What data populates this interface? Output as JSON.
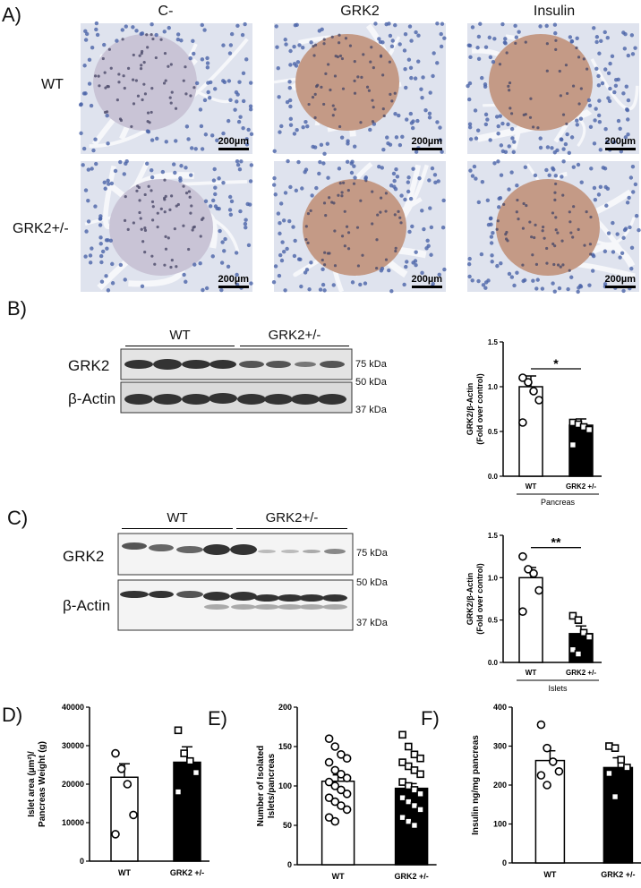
{
  "panels": {
    "A": "A)",
    "B": "B)",
    "C": "C)",
    "D": "D)",
    "E": "E)",
    "F": "F)"
  },
  "panel_a": {
    "columns": [
      "C-",
      "GRK2",
      "Insulin"
    ],
    "rows": [
      "WT",
      "GRK2+/-"
    ],
    "scale_label": "200µm"
  },
  "blot_b": {
    "groups": [
      "WT",
      "GRK2+/-"
    ],
    "bands": [
      "GRK2",
      "β-Actin"
    ],
    "markers": [
      "75 kDa",
      "50 kDa",
      "37 kDa"
    ]
  },
  "blot_c": {
    "groups": [
      "WT",
      "GRK2+/-"
    ],
    "bands": [
      "GRK2",
      "β-Actin"
    ],
    "markers": [
      "75 kDa",
      "50 kDa",
      "37 kDa"
    ]
  },
  "chart_data": [
    {
      "id": "B",
      "type": "bar",
      "categories": [
        "WT",
        "GRK2 +/-"
      ],
      "values": [
        1.0,
        0.57
      ],
      "errors": [
        0.12,
        0.07
      ],
      "points": [
        [
          1.1,
          1.05,
          0.95,
          0.85,
          0.6
        ],
        [
          0.6,
          0.58,
          0.55,
          0.52,
          0.35
        ]
      ],
      "ylabel": "GRK2/β-Actin\n(Fold over control)",
      "ylim": [
        0,
        1.5
      ],
      "yticks": [
        0.0,
        0.5,
        1.0,
        1.5
      ],
      "group_label": "Pancreas",
      "significance": "*"
    },
    {
      "id": "C",
      "type": "bar",
      "categories": [
        "WT",
        "GRK2 +/-"
      ],
      "values": [
        1.0,
        0.34
      ],
      "errors": [
        0.12,
        0.09
      ],
      "points": [
        [
          1.25,
          1.1,
          1.05,
          0.85,
          0.6
        ],
        [
          0.55,
          0.5,
          0.35,
          0.3,
          0.15,
          0.1
        ]
      ],
      "ylabel": "GRK2/β-Actin\n(Fold over control)",
      "ylim": [
        0,
        1.5
      ],
      "yticks": [
        0.0,
        0.5,
        1.0,
        1.5
      ],
      "group_label": "Islets",
      "significance": "**"
    },
    {
      "id": "D",
      "type": "bar",
      "categories": [
        "WT",
        "GRK2 +/-"
      ],
      "values": [
        21800,
        25700
      ],
      "errors": [
        3500,
        4000
      ],
      "points": [
        [
          28000,
          24000,
          20000,
          12000,
          7000
        ],
        [
          34000,
          28000,
          26000,
          23000,
          18000
        ]
      ],
      "ylabel": "Islet area (µm²)/\nPancreas Weight (g)",
      "ylim": [
        0,
        40000
      ],
      "yticks": [
        0,
        10000,
        20000,
        30000,
        40000
      ]
    },
    {
      "id": "E",
      "type": "bar",
      "categories": [
        "WT",
        "GRK2 +/-"
      ],
      "values": [
        106,
        97
      ],
      "errors": [
        8,
        6
      ],
      "points": [
        [
          160,
          150,
          140,
          135,
          130,
          120,
          115,
          110,
          105,
          100,
          95,
          90,
          85,
          80,
          75,
          70,
          60,
          55
        ],
        [
          165,
          150,
          140,
          135,
          130,
          125,
          120,
          115,
          105,
          100,
          95,
          90,
          85,
          80,
          75,
          70,
          60,
          55,
          50
        ]
      ],
      "ylabel": "Number of Isolated\nIslets/pancreas",
      "ylim": [
        0,
        200
      ],
      "yticks": [
        0,
        50,
        100,
        150,
        200
      ]
    },
    {
      "id": "F",
      "type": "bar",
      "categories": [
        "WT",
        "GRK2 +/-"
      ],
      "values": [
        263,
        245
      ],
      "errors": [
        25,
        25
      ],
      "points": [
        [
          355,
          295,
          260,
          235,
          225,
          200
        ],
        [
          300,
          295,
          265,
          245,
          230,
          170
        ]
      ],
      "ylabel": "Insulin ng/mg pancreas",
      "ylim": [
        0,
        400
      ],
      "yticks": [
        0,
        100,
        200,
        300,
        400
      ]
    }
  ]
}
